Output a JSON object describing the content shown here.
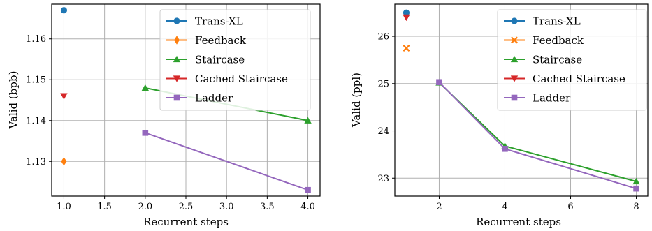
{
  "chart_data": [
    {
      "type": "line",
      "xlabel": "Recurrent steps",
      "ylabel": "Valid (bpb)",
      "xlim": [
        0.85,
        4.15
      ],
      "ylim": [
        1.1215,
        1.1685
      ],
      "xticks": [
        "1.0",
        "1.5",
        "2.0",
        "2.5",
        "3.0",
        "3.5",
        "4.0"
      ],
      "yticks": [
        "1.13",
        "1.14",
        "1.15",
        "1.16"
      ],
      "grid": true,
      "legend_position": "top-right",
      "series": [
        {
          "name": "Trans-XL",
          "color": "#1f77b4",
          "marker": "circle",
          "x": [
            1
          ],
          "y": [
            1.167
          ]
        },
        {
          "name": "Feedback",
          "color": "#ff7f0e",
          "marker": "diamond",
          "x": [
            1
          ],
          "y": [
            1.13
          ]
        },
        {
          "name": "Staircase",
          "color": "#2ca02c",
          "marker": "triangle-up",
          "x": [
            2,
            4
          ],
          "y": [
            1.148,
            1.14
          ]
        },
        {
          "name": "Cached Staircase",
          "color": "#d62728",
          "marker": "triangle-down",
          "x": [
            1
          ],
          "y": [
            1.146
          ]
        },
        {
          "name": "Ladder",
          "color": "#9467bd",
          "marker": "square",
          "x": [
            2,
            4
          ],
          "y": [
            1.137,
            1.123
          ]
        }
      ]
    },
    {
      "type": "line",
      "xlabel": "Recurrent steps",
      "ylabel": "Valid (ppl)",
      "xlim": [
        0.65,
        8.35
      ],
      "ylim": [
        22.62,
        26.68
      ],
      "xticks": [
        "2",
        "4",
        "6",
        "8"
      ],
      "yticks": [
        "23",
        "24",
        "25",
        "26"
      ],
      "grid": true,
      "legend_position": "top-right",
      "series": [
        {
          "name": "Trans-XL",
          "color": "#1f77b4",
          "marker": "circle",
          "x": [
            1
          ],
          "y": [
            26.5
          ]
        },
        {
          "name": "Feedback",
          "color": "#ff7f0e",
          "marker": "x",
          "x": [
            1
          ],
          "y": [
            25.75
          ]
        },
        {
          "name": "Staircase",
          "color": "#2ca02c",
          "marker": "triangle-up",
          "x": [
            2,
            4,
            8
          ],
          "y": [
            25.02,
            23.68,
            22.93
          ]
        },
        {
          "name": "Cached Staircase",
          "color": "#d62728",
          "marker": "triangle-down",
          "x": [
            1
          ],
          "y": [
            26.4
          ]
        },
        {
          "name": "Ladder",
          "color": "#9467bd",
          "marker": "square",
          "x": [
            2,
            4,
            8
          ],
          "y": [
            25.03,
            23.62,
            22.78
          ]
        }
      ]
    }
  ]
}
